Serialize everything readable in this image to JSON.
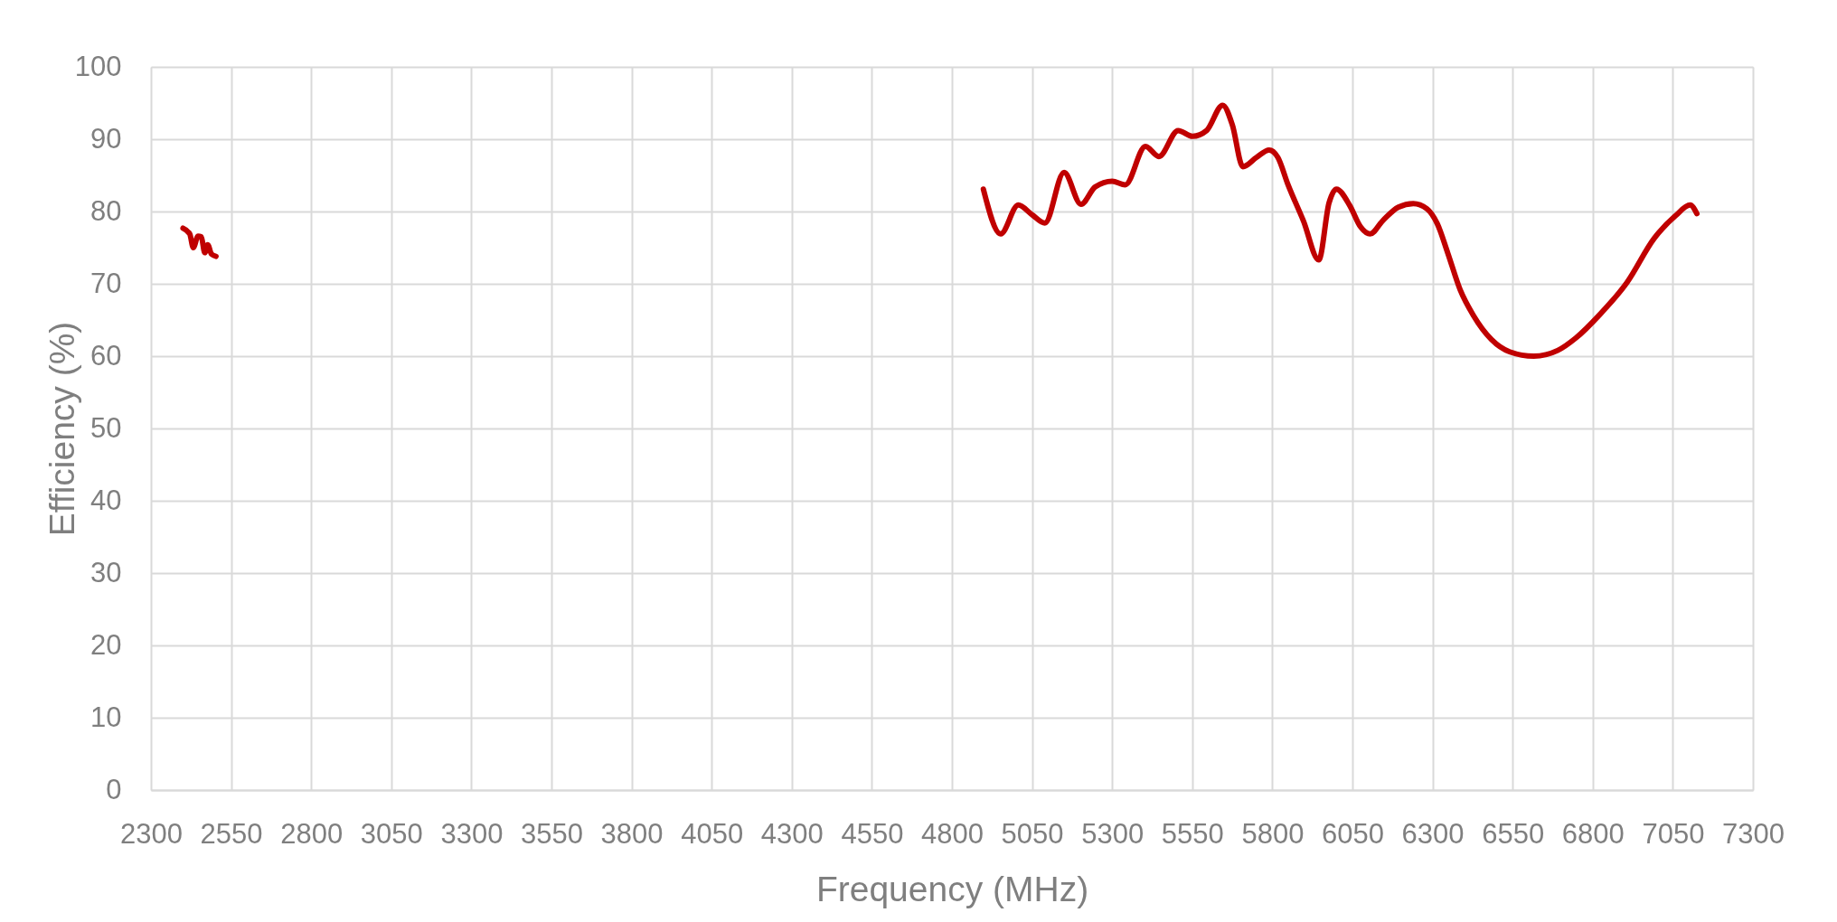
{
  "chart_data": {
    "type": "line",
    "xlabel": "Frequency (MHz)",
    "ylabel": "Efficiency (%)",
    "x": [
      2400,
      2421,
      2432,
      2447,
      2457,
      2468,
      2477,
      2489,
      2503,
      null,
      4898,
      4952,
      5007,
      5049,
      5090,
      5150,
      5203,
      5247,
      5300,
      5341,
      5404,
      5446,
      5506,
      5551,
      5595,
      5645,
      5675,
      5708,
      5751,
      5790,
      5817,
      5849,
      5897,
      5945,
      5977,
      6000,
      6042,
      6075,
      6105,
      6146,
      6193,
      6240,
      6282,
      6315,
      6348,
      6386,
      6428,
      6484,
      6541,
      6616,
      6691,
      6747,
      6823,
      6907,
      6992,
      7058,
      7104,
      7125
    ],
    "series": [
      {
        "color": "#c00000",
        "values": [
          77.7,
          76.9,
          75.0,
          76.6,
          76.5,
          74.3,
          75.4,
          74.1,
          73.8,
          null,
          83.1,
          76.9,
          80.9,
          79.6,
          78.4,
          85.4,
          81.0,
          83.4,
          84.2,
          83.7,
          89.0,
          87.6,
          91.2,
          90.4,
          91.2,
          94.7,
          92.0,
          86.2,
          87.5,
          88.5,
          87.5,
          83.7,
          78.7,
          73.3,
          81.2,
          83.1,
          80.8,
          77.9,
          76.9,
          78.8,
          80.6,
          81.1,
          80.4,
          78.3,
          74.2,
          69.2,
          65.6,
          62.3,
          60.6,
          60.0,
          60.8,
          62.5,
          65.8,
          70.2,
          76.3,
          79.4,
          80.9,
          79.7
        ]
      }
    ],
    "xlim": [
      2300,
      7300
    ],
    "xticks": [
      2300,
      2550,
      2800,
      3050,
      3300,
      3550,
      3800,
      4050,
      4300,
      4550,
      4800,
      5050,
      5300,
      5550,
      5800,
      6050,
      6300,
      6550,
      6800,
      7050,
      7300
    ],
    "ylim": [
      0,
      100
    ],
    "yticks": [
      0,
      10,
      20,
      30,
      40,
      50,
      60,
      70,
      80,
      90,
      100
    ],
    "grid": true,
    "marker": "none",
    "line_style": "solid"
  }
}
